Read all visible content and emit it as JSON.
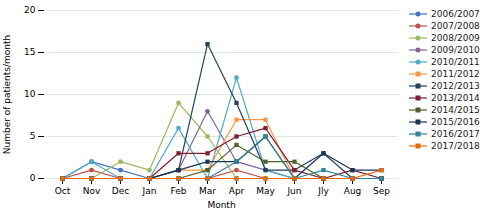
{
  "chart_data": {
    "type": "line",
    "categories": [
      "Oct",
      "Nov",
      "Dec",
      "Jan",
      "Feb",
      "Mar",
      "Apr",
      "May",
      "Jun",
      "Jly",
      "Aug",
      "Sep"
    ],
    "series": [
      {
        "name": "2006/2007",
        "color": "#4472C4",
        "marker": "circle",
        "values": [
          0,
          2,
          1,
          0,
          0,
          0,
          0,
          0,
          0,
          0,
          0,
          0
        ]
      },
      {
        "name": "2007/2008",
        "color": "#C0504D",
        "marker": "circle",
        "values": [
          0,
          1,
          0,
          0,
          0,
          0,
          1,
          0,
          0,
          0,
          0,
          0
        ]
      },
      {
        "name": "2008/2009",
        "color": "#9BBB59",
        "marker": "circle",
        "values": [
          0,
          0,
          2,
          1,
          9,
          5,
          0,
          0,
          0,
          0,
          0,
          0
        ]
      },
      {
        "name": "2009/2010",
        "color": "#8064A2",
        "marker": "circle",
        "values": [
          0,
          0,
          0,
          0,
          1,
          8,
          2,
          1,
          0,
          0,
          0,
          0
        ]
      },
      {
        "name": "2010/2011",
        "color": "#4BACC6",
        "marker": "circle",
        "values": [
          0,
          2,
          0,
          0,
          6,
          0,
          12,
          1,
          0,
          0,
          0,
          0
        ]
      },
      {
        "name": "2011/2012",
        "color": "#F79646",
        "marker": "square",
        "values": [
          0,
          0,
          0,
          0,
          1,
          1,
          7,
          7,
          0,
          0,
          0,
          0
        ]
      },
      {
        "name": "2012/2013",
        "color": "#243F60",
        "marker": "square",
        "values": [
          0,
          0,
          0,
          0,
          1,
          16,
          9,
          1,
          1,
          3,
          0,
          0
        ]
      },
      {
        "name": "2013/2014",
        "color": "#7F2030",
        "marker": "square",
        "values": [
          0,
          0,
          0,
          0,
          3,
          3,
          5,
          6,
          1,
          0,
          1,
          0
        ]
      },
      {
        "name": "2014/2015",
        "color": "#4F6228",
        "marker": "square",
        "values": [
          0,
          0,
          0,
          0,
          0,
          1,
          4,
          2,
          2,
          0,
          0,
          0
        ]
      },
      {
        "name": "2015/2016",
        "color": "#17375E",
        "marker": "square",
        "values": [
          0,
          0,
          0,
          0,
          1,
          2,
          2,
          5,
          0,
          3,
          1,
          1
        ]
      },
      {
        "name": "2016/2017",
        "color": "#31849B",
        "marker": "square",
        "values": [
          0,
          0,
          0,
          0,
          0,
          0,
          2,
          5,
          0,
          1,
          0,
          0
        ]
      },
      {
        "name": "2017/2018",
        "color": "#E36C09",
        "marker": "square",
        "values": [
          0,
          0,
          0,
          0,
          0,
          0,
          0,
          0,
          0,
          0,
          0,
          1
        ]
      }
    ],
    "xlabel": "Month",
    "ylabel": "Number of patients/month",
    "ylim": [
      0,
      20
    ],
    "yticks": [
      0,
      5,
      10,
      15,
      20
    ],
    "grid": true,
    "legend": "right"
  }
}
